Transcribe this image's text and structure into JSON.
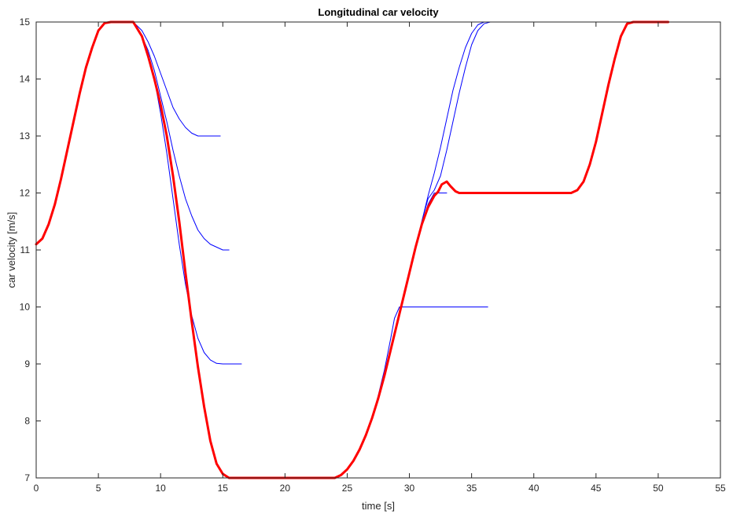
{
  "chart_data": {
    "type": "line",
    "title": "Longitudinal car velocity",
    "xlabel": "time [s]",
    "ylabel": "car velocity [m/s]",
    "xlim": [
      0,
      55
    ],
    "ylim": [
      7,
      15
    ],
    "xticks": [
      0,
      5,
      10,
      15,
      20,
      25,
      30,
      35,
      40,
      45,
      50,
      55
    ],
    "yticks": [
      7,
      8,
      9,
      10,
      11,
      12,
      13,
      14,
      15
    ],
    "grid": false,
    "box": true,
    "colors": {
      "main": "#ff0000",
      "alt": "#0000ff",
      "axis": "#262626"
    },
    "series": [
      {
        "role": "main",
        "width": 3,
        "color": "#ff0000",
        "x": [
          0,
          0.5,
          1,
          1.5,
          2,
          2.5,
          3,
          3.5,
          4,
          4.5,
          5,
          5.5,
          6,
          7,
          7.8,
          8.5,
          9,
          9.5,
          10,
          10.5,
          11,
          11.5,
          12,
          12.5,
          13,
          13.5,
          14,
          14.5,
          15,
          15.5,
          16,
          17,
          20,
          23,
          24,
          24.5,
          25,
          25.5,
          26,
          26.5,
          27,
          27.5,
          28,
          28.5,
          29,
          29.5,
          30,
          30.5,
          31,
          31.5,
          32,
          32.3,
          32.6,
          33,
          33.3,
          33.7,
          34,
          35,
          40,
          43,
          43.5,
          44,
          44.5,
          45,
          45.5,
          46,
          46.5,
          47,
          47.5,
          48,
          49,
          50,
          50.8
        ],
        "y": [
          11.1,
          11.2,
          11.45,
          11.8,
          12.25,
          12.75,
          13.25,
          13.75,
          14.2,
          14.55,
          14.85,
          14.98,
          15,
          15,
          15,
          14.75,
          14.4,
          14.0,
          13.55,
          13.0,
          12.3,
          11.5,
          10.6,
          9.75,
          8.95,
          8.25,
          7.65,
          7.25,
          7.07,
          7.0,
          7.0,
          7.0,
          7.0,
          7.0,
          7.0,
          7.05,
          7.15,
          7.3,
          7.5,
          7.75,
          8.05,
          8.4,
          8.8,
          9.25,
          9.7,
          10.15,
          10.6,
          11.05,
          11.45,
          11.75,
          11.95,
          12.02,
          12.15,
          12.2,
          12.12,
          12.03,
          12.0,
          12.0,
          12.0,
          12.0,
          12.05,
          12.2,
          12.5,
          12.9,
          13.4,
          13.9,
          14.35,
          14.75,
          14.97,
          15,
          15,
          15,
          15
        ]
      },
      {
        "role": "alt",
        "width": 1,
        "color": "#0000ff",
        "x": [
          7.8,
          8.5,
          9,
          9.5,
          10,
          10.5,
          11,
          11.5,
          12,
          12.5,
          13,
          13.5,
          14,
          14.8
        ],
        "y": [
          15,
          14.85,
          14.65,
          14.4,
          14.1,
          13.8,
          13.5,
          13.3,
          13.15,
          13.05,
          13.0,
          13.0,
          13.0,
          13.0
        ]
      },
      {
        "role": "alt",
        "width": 1,
        "color": "#0000ff",
        "x": [
          7.8,
          8.5,
          9,
          9.5,
          10,
          10.5,
          11,
          11.5,
          12,
          12.5,
          13,
          13.5,
          14,
          14.5,
          15,
          15.5
        ],
        "y": [
          15,
          14.75,
          14.5,
          14.15,
          13.7,
          13.25,
          12.75,
          12.3,
          11.9,
          11.6,
          11.35,
          11.2,
          11.1,
          11.05,
          11.0,
          11.0
        ]
      },
      {
        "role": "alt",
        "width": 1,
        "color": "#0000ff",
        "x": [
          7.8,
          8.5,
          9,
          9.5,
          10,
          10.5,
          11,
          11.5,
          12,
          12.5,
          13,
          13.5,
          14,
          14.5,
          15,
          16.5
        ],
        "y": [
          15,
          14.75,
          14.45,
          14.0,
          13.4,
          12.7,
          11.9,
          11.1,
          10.4,
          9.85,
          9.45,
          9.2,
          9.07,
          9.01,
          9.0,
          9.0
        ]
      },
      {
        "role": "alt",
        "width": 1,
        "color": "#0000ff",
        "x": [
          25.5,
          26,
          26.5,
          27,
          27.5,
          28,
          28.5,
          28.8,
          29.2,
          30,
          33,
          36.3
        ],
        "y": [
          7.3,
          7.5,
          7.75,
          8.05,
          8.45,
          8.9,
          9.45,
          9.8,
          10.0,
          10.0,
          10.0,
          10.0
        ]
      },
      {
        "role": "alt",
        "width": 1,
        "color": "#0000ff",
        "x": [
          25.5,
          26,
          26.5,
          27,
          27.5,
          28,
          28.5,
          29,
          29.5,
          30,
          30.5,
          31,
          31.5,
          32,
          32.5,
          33
        ],
        "y": [
          7.3,
          7.5,
          7.75,
          8.05,
          8.4,
          8.8,
          9.25,
          9.7,
          10.15,
          10.6,
          11.05,
          11.45,
          11.8,
          12.0,
          12.0,
          12.0
        ]
      },
      {
        "role": "alt",
        "width": 1,
        "color": "#0000ff",
        "x": [
          25.5,
          26,
          26.5,
          27,
          27.5,
          28,
          28.5,
          29,
          29.5,
          30,
          30.5,
          31,
          31.5,
          32,
          32.5,
          33,
          33.5,
          34,
          34.5,
          35,
          35.5,
          36
        ],
        "y": [
          7.3,
          7.5,
          7.75,
          8.05,
          8.4,
          8.8,
          9.25,
          9.7,
          10.15,
          10.6,
          11.05,
          11.5,
          11.95,
          12.35,
          12.8,
          13.3,
          13.8,
          14.2,
          14.55,
          14.8,
          14.95,
          15.0
        ]
      },
      {
        "role": "alt",
        "width": 1,
        "color": "#0000ff",
        "x": [
          25.5,
          26,
          26.5,
          27,
          27.5,
          28,
          28.5,
          29,
          29.5,
          30,
          30.5,
          31,
          31.5,
          32,
          32.5,
          33,
          33.5,
          34,
          34.5,
          35,
          35.5,
          36,
          36.5,
          39
        ],
        "y": [
          7.3,
          7.5,
          7.75,
          8.05,
          8.4,
          8.8,
          9.25,
          9.7,
          10.15,
          10.6,
          11.05,
          11.5,
          11.9,
          12.05,
          12.3,
          12.75,
          13.25,
          13.75,
          14.2,
          14.6,
          14.85,
          14.97,
          15.0,
          15.0
        ]
      }
    ]
  }
}
